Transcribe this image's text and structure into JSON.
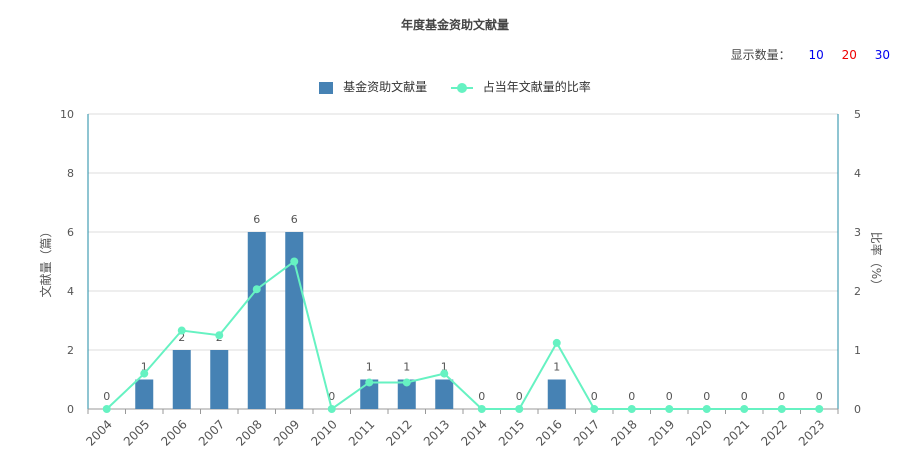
{
  "title": "年度基金资助文献量",
  "display_count": {
    "label": "显示数量：",
    "options": [
      {
        "label": "10",
        "color": "#0000ee"
      },
      {
        "label": "20",
        "color": "#ee0000"
      },
      {
        "label": "30",
        "color": "#0000ee"
      }
    ]
  },
  "colors": {
    "bar": "#4682b4",
    "line": "#66f2c2",
    "axis": "#1f8ba6",
    "grid": "#dddddd",
    "text": "#555555"
  },
  "chart_data": {
    "type": "bar",
    "categories": [
      "2004",
      "2005",
      "2006",
      "2007",
      "2008",
      "2009",
      "2010",
      "2011",
      "2012",
      "2013",
      "2014",
      "2015",
      "2016",
      "2017",
      "2018",
      "2019",
      "2020",
      "2021",
      "2022",
      "2023"
    ],
    "series": [
      {
        "name": "基金资助文献量",
        "type": "bar",
        "axis": "left",
        "values": [
          0,
          1,
          2,
          2,
          6,
          6,
          0,
          1,
          1,
          1,
          0,
          0,
          1,
          0,
          0,
          0,
          0,
          0,
          0,
          0
        ]
      },
      {
        "name": "占当年文献量的比率",
        "type": "line",
        "axis": "right",
        "values": [
          0,
          0.6,
          1.33,
          1.25,
          2.03,
          2.5,
          0,
          0.45,
          0.45,
          0.6,
          0,
          0,
          1.12,
          0,
          0,
          0,
          0,
          0,
          0,
          0
        ]
      }
    ],
    "ylabel": "文献量（篇）",
    "y2label": "比率（%）",
    "ylim": [
      0,
      10
    ],
    "y2lim": [
      0,
      5
    ],
    "yticks": [
      "0",
      "2",
      "4",
      "6",
      "8",
      "10"
    ],
    "y2ticks": [
      "0",
      "1",
      "2",
      "3",
      "4",
      "5"
    ],
    "grid": true,
    "legend": "top-center"
  }
}
